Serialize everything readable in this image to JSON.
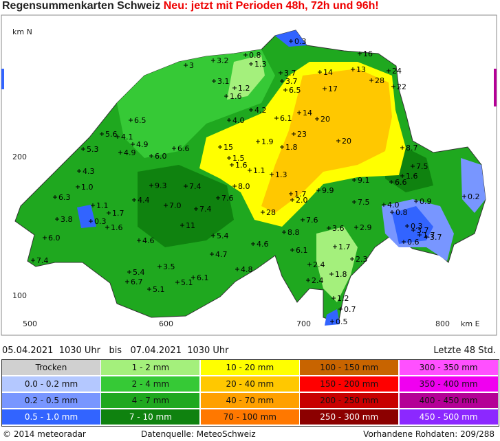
{
  "header": {
    "title": "Regensummenkarten Schweiz",
    "notice": "Neu: jetzt mit Perioden 48h, 72h und 96h!"
  },
  "map": {
    "axis_north": "km N",
    "axis_east": "km E",
    "y_labels": [
      "200",
      "100"
    ],
    "x_labels": [
      "500",
      "600",
      "700",
      "800"
    ],
    "stations": [
      "0.3",
      "16",
      "3.2",
      "0.8",
      "1.3",
      "3",
      "14",
      "13",
      "24",
      "3.7",
      "3.1",
      "3.7",
      "28",
      "1.2",
      "6.5",
      "17",
      "22",
      "1.6",
      "4.2",
      "14",
      "6.5",
      "4.0",
      "6.1",
      "20",
      "5.6",
      "4.1",
      "23",
      "4.9",
      "1.9",
      "20",
      "5.3",
      "15",
      "1.8",
      "8.7",
      "4.9",
      "6.0",
      "6.6",
      "1.5",
      "1.6",
      "7.5",
      "4.3",
      "1.1",
      "1.3",
      "1.6",
      "1.0",
      "9.3",
      "7.4",
      "8.0",
      "9.9",
      "9.1",
      "6.6",
      "6.3",
      "1.7",
      "2.0",
      "4.4",
      "7.6",
      "0.2",
      "1.1",
      "7.0",
      "7.4",
      "7.5",
      "4.0",
      "0.9",
      "1.7",
      "28",
      "3.8",
      "0.3",
      "0.8",
      "1.6",
      "11",
      "7.6",
      "0.3",
      "3.6",
      "2.9",
      "3.7",
      "1.7",
      "8.8",
      "6.0",
      "5.4",
      "3.7",
      "4.6",
      "4.6",
      "0.6",
      "1.7",
      "6.1",
      "4.7",
      "7.4",
      "2.3",
      "3.5",
      "4.8",
      "2.4",
      "5.4",
      "1.8",
      "6.7",
      "6.1",
      "5.1",
      "2.4",
      "5.1",
      "1.2",
      "0.7",
      "0.5"
    ]
  },
  "period": {
    "from_date": "05.04.2021",
    "from_time": "1030 Uhr",
    "bis": "bis",
    "to_date": "07.04.2021",
    "to_time": "1030 Uhr",
    "span": "Letzte 48 Std."
  },
  "legend": [
    {
      "label": "Trocken",
      "color": "#d0d0d0"
    },
    {
      "label": "1 - 2 mm",
      "color": "#a4f07c"
    },
    {
      "label": "10 - 20 mm",
      "color": "#ffff00"
    },
    {
      "label": "100 - 150 mm",
      "color": "#c86400"
    },
    {
      "label": "300 - 350 mm",
      "color": "#ff50ff"
    },
    {
      "label": "0.0 - 0.2 mm",
      "color": "#b4c8ff"
    },
    {
      "label": "2 - 4 mm",
      "color": "#36c936"
    },
    {
      "label": "20 - 40 mm",
      "color": "#ffc800"
    },
    {
      "label": "150 - 200 mm",
      "color": "#ff0000"
    },
    {
      "label": "350 - 400 mm",
      "color": "#f000f0"
    },
    {
      "label": "0.2 - 0.5 mm",
      "color": "#7896ff"
    },
    {
      "label": "4 - 7 mm",
      "color": "#1fa81f"
    },
    {
      "label": "40 - 70 mm",
      "color": "#ffa000"
    },
    {
      "label": "200 - 250 mm",
      "color": "#c80000"
    },
    {
      "label": "400 - 450 mm",
      "color": "#b40096"
    },
    {
      "label": "0.5 - 1.0 mm",
      "color": "#3264ff"
    },
    {
      "label": "7 - 10 mm",
      "color": "#0f820f"
    },
    {
      "label": "70 - 100 mm",
      "color": "#ff7800"
    },
    {
      "label": "250 - 300 mm",
      "color": "#8c0000"
    },
    {
      "label": "450 - 500 mm",
      "color": "#8c28ff"
    }
  ],
  "footer": {
    "copyright": "© 2014 meteoradar",
    "source": "Datenquelle: MeteoSchweiz",
    "raw": "Vorhandene Rohdaten: 209/288"
  }
}
